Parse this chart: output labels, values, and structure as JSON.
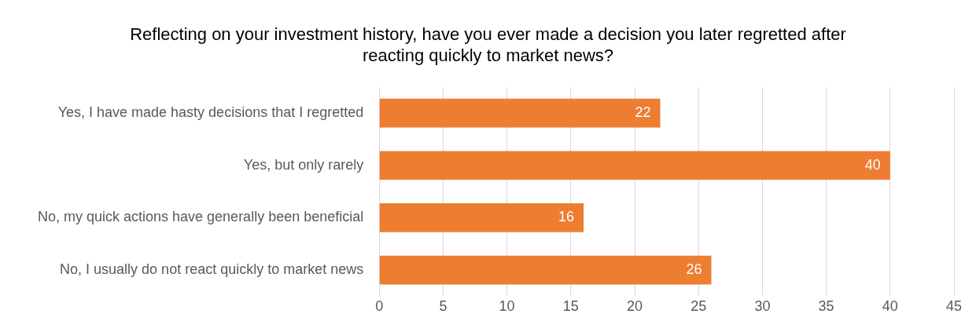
{
  "chart_data": {
    "type": "bar",
    "orientation": "horizontal",
    "title": "Reflecting on your investment history, have you ever made a decision you later regretted after reacting quickly to market news?",
    "categories": [
      "Yes, I have made hasty decisions that I regretted",
      "Yes, but only rarely",
      "No, my quick actions have generally been beneficial",
      "No, I usually do not react quickly to market news"
    ],
    "values": [
      22,
      40,
      16,
      26
    ],
    "color": "#ed7d31",
    "xlim": [
      0,
      45
    ],
    "xticks": [
      0,
      5,
      10,
      15,
      20,
      25,
      30,
      35,
      40,
      45
    ],
    "grid": "x",
    "data_labels": true
  }
}
